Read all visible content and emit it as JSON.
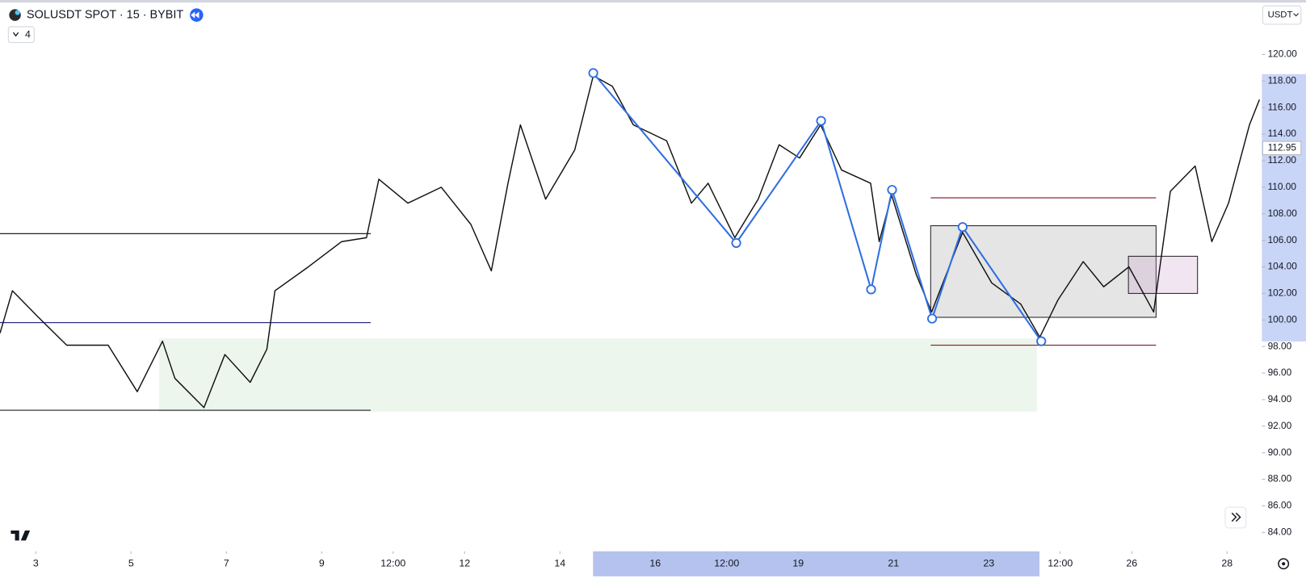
{
  "header": {
    "symbol": "SOLUSDT SPOT · 15 · BYBIT",
    "indicator_count": "4",
    "currency": "USDT"
  },
  "chart_data": {
    "type": "line",
    "color": "#111111",
    "x": [
      2.25,
      2.51,
      3.03,
      3.65,
      4.52,
      5.13,
      5.66,
      5.92,
      6.53,
      6.97,
      7.5,
      7.85,
      8.02,
      8.72,
      9.42,
      9.94,
      10.2,
      10.81,
      11.51,
      12.13,
      12.56,
      12.91,
      13.17,
      13.7,
      14.31,
      14.7,
      15.1,
      15.54,
      16.24,
      16.76,
      17.11,
      17.67,
      18.16,
      18.6,
      19.03,
      19.47,
      19.91,
      20.52,
      20.7,
      20.96,
      21.48,
      21.8,
      22.45,
      23.06,
      23.67,
      24.07,
      24.45,
      24.98,
      25.41,
      25.94,
      26.46,
      26.81,
      27.33,
      27.68,
      28.03,
      28.47,
      28.68
    ],
    "values": [
      99.0,
      102.2,
      100.3,
      98.1,
      98.1,
      94.6,
      98.4,
      95.6,
      93.4,
      97.4,
      95.3,
      97.8,
      102.2,
      104.0,
      105.9,
      106.2,
      110.6,
      108.8,
      110.0,
      107.2,
      103.7,
      110.3,
      114.7,
      109.1,
      112.8,
      118.4,
      117.6,
      114.7,
      113.5,
      108.8,
      110.3,
      106.2,
      109.1,
      113.2,
      112.2,
      114.7,
      111.3,
      110.3,
      105.9,
      109.4,
      103.4,
      100.6,
      106.6,
      102.8,
      101.2,
      98.7,
      101.5,
      104.4,
      102.5,
      104.0,
      100.6,
      109.7,
      111.6,
      105.9,
      108.8,
      114.7,
      116.6
    ],
    "last_price": 112.95,
    "zigzag": {
      "color": "#2f6fe0",
      "x": [
        14.7,
        17.7,
        19.48,
        20.53,
        20.97,
        21.81,
        22.45,
        24.1
      ],
      "values": [
        118.6,
        105.8,
        115.0,
        102.3,
        109.8,
        100.1,
        107.0,
        98.4
      ]
    },
    "levels": [
      {
        "x": [
          2.25,
          10.03
        ],
        "value": 106.5,
        "color": "#222222"
      },
      {
        "x": [
          2.25,
          10.03
        ],
        "value": 99.8,
        "color": "#1a237e"
      },
      {
        "x": [
          2.25,
          10.03
        ],
        "value": 93.2,
        "color": "#222222"
      },
      {
        "x": [
          21.78,
          26.51
        ],
        "value": 109.2,
        "color": "#8b2c3a"
      },
      {
        "x": [
          21.78,
          26.51
        ],
        "value": 98.1,
        "color": "#8b2c3a"
      }
    ],
    "zones": [
      {
        "x": [
          5.59,
          24.01
        ],
        "y": [
          93.1,
          98.6
        ],
        "color": "rgba(200,230,201,0.35)",
        "stroke": "none"
      },
      {
        "x": [
          21.78,
          26.51
        ],
        "y": [
          100.2,
          107.1
        ],
        "color": "rgba(150,150,150,0.25)",
        "stroke": "#222222"
      },
      {
        "x": [
          25.93,
          27.38
        ],
        "y": [
          102.0,
          104.8
        ],
        "color": "rgba(200,150,200,0.25)",
        "stroke": "#222222"
      }
    ],
    "xlim": [
      2.25,
      28.73
    ],
    "ylim": [
      82.7,
      124.1
    ],
    "xticks": [
      3,
      5,
      7,
      9,
      {
        "value": 10.5,
        "label": "12:00"
      },
      12,
      14,
      16,
      {
        "value": 17.5,
        "label": "12:00"
      },
      19,
      21,
      23,
      {
        "value": 24.5,
        "label": "12:00"
      },
      26,
      28
    ],
    "yticks": [
      {
        "value": 84,
        "label": "84.00"
      },
      {
        "value": 86,
        "label": "86.00"
      },
      {
        "value": 88,
        "label": "88.00"
      },
      {
        "value": 90,
        "label": "90.00"
      },
      {
        "value": 92,
        "label": "92.00"
      },
      {
        "value": 94,
        "label": "94.00"
      },
      {
        "value": 96,
        "label": "96.00"
      },
      {
        "value": 98,
        "label": "98.00"
      },
      {
        "value": 100,
        "label": "100.00"
      },
      {
        "value": 102,
        "label": "102.00"
      },
      {
        "value": 104,
        "label": "104.00"
      },
      {
        "value": 106,
        "label": "106.00"
      },
      {
        "value": 108,
        "label": "108.00"
      },
      {
        "value": 110,
        "label": "110.00"
      },
      {
        "value": 112,
        "label": "112.00"
      },
      {
        "value": 114,
        "label": "114.00"
      },
      {
        "value": 116,
        "label": "116.00"
      },
      {
        "value": 118,
        "label": "118.00"
      },
      {
        "value": 120,
        "label": "120.00"
      }
    ]
  }
}
